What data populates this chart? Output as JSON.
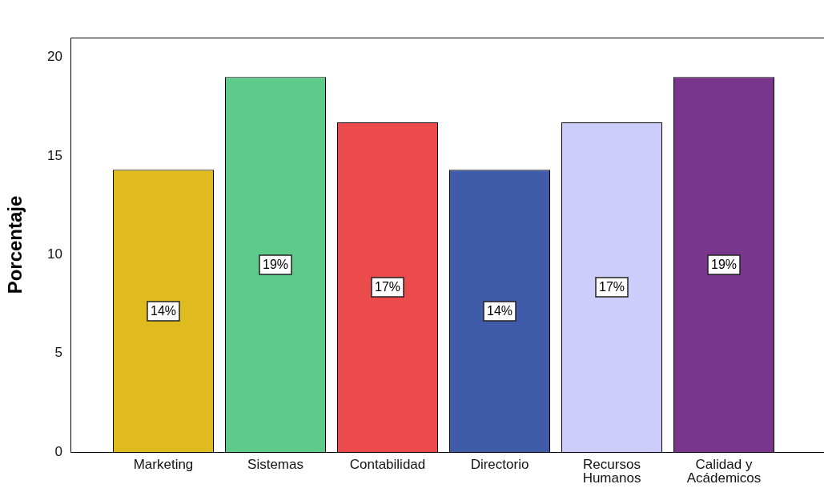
{
  "chart_data": {
    "type": "bar",
    "ylabel": "Porcentaje",
    "categories": [
      "Marketing",
      "Sistemas",
      "Contabilidad",
      "Directorio",
      "Recursos Humanos",
      "Calidad y Acádemicos"
    ],
    "values": [
      14.3,
      19.0,
      16.7,
      14.3,
      16.7,
      19.0
    ],
    "colors": [
      "#e0bb20",
      "#5ecb8b",
      "#eb4b4b",
      "#3f5ba9",
      "#cccdfb",
      "#78368c"
    ],
    "value_labels": [
      "14%",
      "19%",
      "17%",
      "14%",
      "17%",
      "19%"
    ],
    "ylim": [
      0,
      21
    ],
    "yticks": [
      0,
      5,
      10,
      15,
      20
    ]
  }
}
